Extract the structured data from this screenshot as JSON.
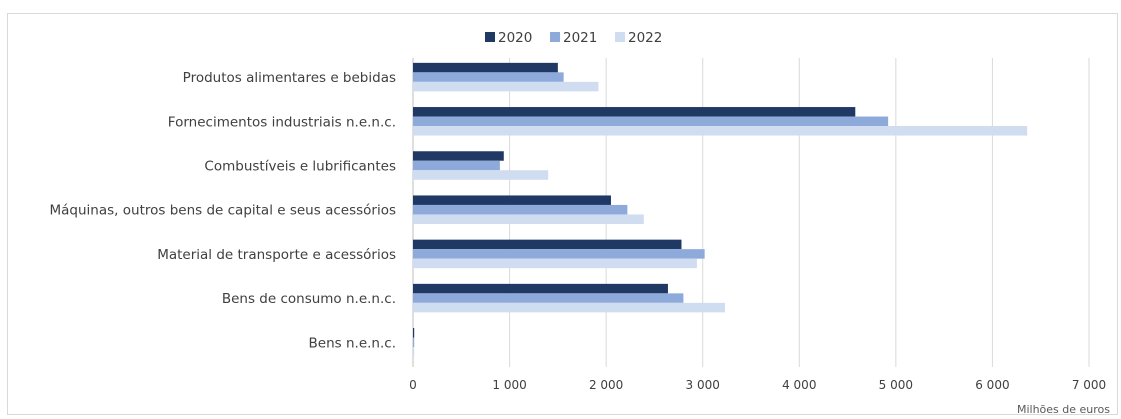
{
  "chart_data": {
    "type": "bar",
    "orientation": "horizontal",
    "categories": [
      "Produtos alimentares e bebidas",
      "Fornecimentos industriais n.e.n.c.",
      "Combustíveis e lubrificantes",
      "Máquinas, outros bens de capital e seus acessórios",
      "Material de transporte e acessórios",
      "Bens de consumo n.e.n.c.",
      "Bens n.e.n.c."
    ],
    "series": [
      {
        "name": "2020",
        "color": "#1f3864",
        "values": [
          1500,
          4580,
          940,
          2050,
          2780,
          2640,
          10
        ]
      },
      {
        "name": "2021",
        "color": "#8eaadb",
        "values": [
          1560,
          4920,
          900,
          2220,
          3020,
          2800,
          10
        ]
      },
      {
        "name": "2022",
        "color": "#d0dcf0",
        "values": [
          1920,
          6360,
          1400,
          2390,
          2940,
          3230,
          10
        ]
      }
    ],
    "x_ticks": [
      "0",
      "1 000",
      "2 000",
      "3 000",
      "4 000",
      "5 000",
      "6 000",
      "7 000"
    ],
    "xlim": [
      0,
      7000
    ],
    "xlabel": "Milhões de euros",
    "legend_position": "top",
    "grid": true
  }
}
